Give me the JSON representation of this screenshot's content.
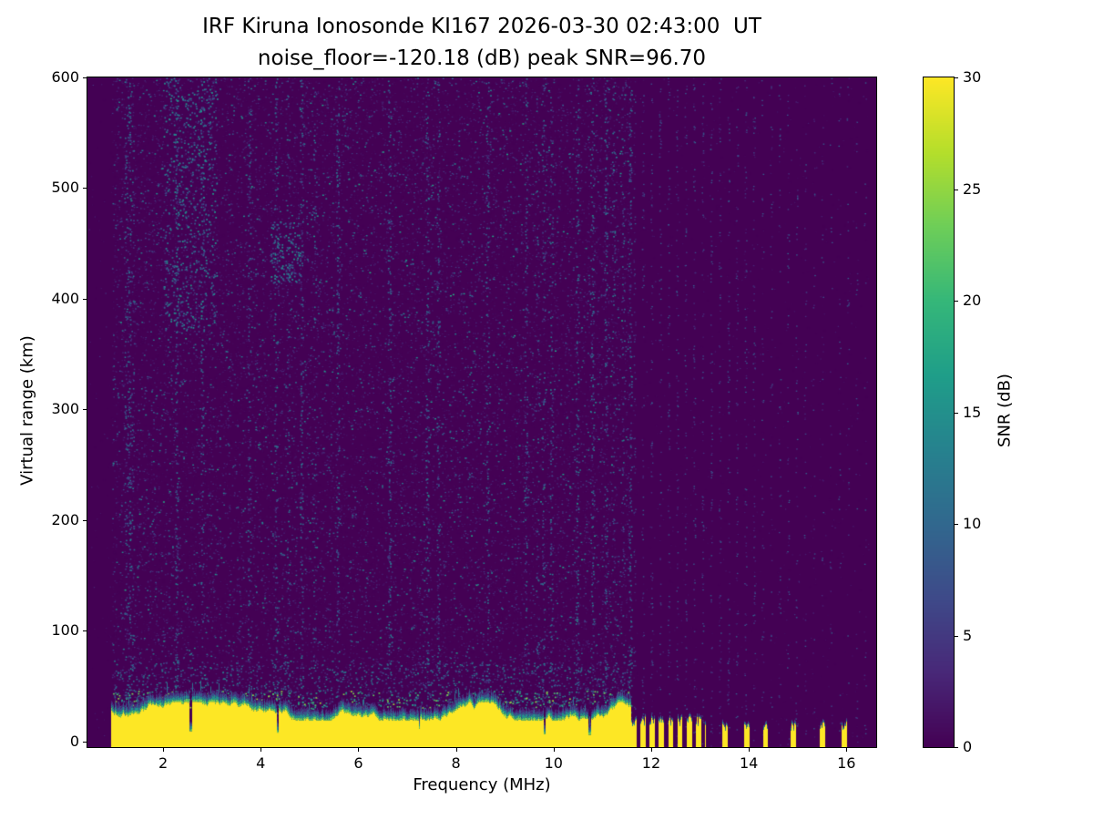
{
  "chart_data": {
    "type": "heatmap",
    "title": "IRF Kiruna Ionosonde KI167 2026-03-30 02:43:00  UT",
    "subtitle": "noise_floor=-120.18 (dB) peak SNR=96.70",
    "station": "IRF Kiruna Ionosonde KI167",
    "timestamp_ut": "2026-03-30 02:43:00",
    "noise_floor_db": -120.18,
    "peak_snr_db": 96.7,
    "xlabel": "Frequency (MHz)",
    "ylabel": "Virtual range (km)",
    "xlim": [
      0.45,
      16.61
    ],
    "ylim": [
      -5,
      600
    ],
    "x_ticks": [
      2,
      4,
      6,
      8,
      10,
      12,
      14,
      16
    ],
    "y_ticks": [
      0,
      100,
      200,
      300,
      400,
      500,
      600
    ],
    "colorbar": {
      "label": "SNR (dB)",
      "ticks": [
        0,
        5,
        10,
        15,
        20,
        25,
        30
      ],
      "range": [
        0,
        30
      ],
      "colormap": "viridis"
    },
    "features": {
      "ground_echo": {
        "description": "Saturated (>=30 dB SNR) near-range echo band from bottom edge up to ~35 km virtual range with a ragged teal transition cap",
        "continuous_mhz": [
          0.95,
          11.58
        ],
        "striped_mhz": [
          11.58,
          13.12
        ],
        "stripe_period_mhz": 0.19,
        "stripe_duty": 0.55,
        "sparse_pulse_centers_mhz": [
          13.5,
          13.95,
          14.33,
          14.9,
          15.5,
          15.95
        ],
        "band_top_km": 27
      },
      "noise_speckle": {
        "description": "Low-SNR (1-15 dB) background speckle across sounded band 1-11.6 MHz; faint columnar speckle traces above 11.6 MHz",
        "enhanced_regions": [
          {
            "f_mhz": [
              2.0,
              3.1
            ],
            "range_km": [
              370,
              600
            ],
            "points": 520
          },
          {
            "f_mhz": [
              4.2,
              4.8
            ],
            "range_km": [
              415,
              470
            ],
            "points": 140
          }
        ]
      }
    },
    "render_seed": 167
  }
}
